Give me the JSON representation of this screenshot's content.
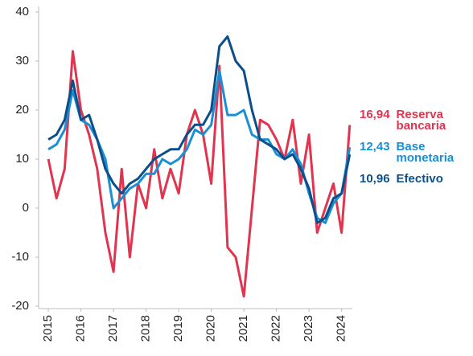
{
  "chart_data": {
    "type": "line",
    "x": [
      2015,
      2015.25,
      2015.5,
      2015.75,
      2016,
      2016.25,
      2016.5,
      2016.75,
      2017,
      2017.25,
      2017.5,
      2017.75,
      2018,
      2018.25,
      2018.5,
      2018.75,
      2019,
      2019.25,
      2019.5,
      2019.75,
      2020,
      2020.25,
      2020.5,
      2020.75,
      2021,
      2021.25,
      2021.5,
      2021.75,
      2022,
      2022.25,
      2022.5,
      2022.75,
      2023,
      2023.25,
      2023.5,
      2023.75,
      2024,
      2024.25
    ],
    "series": [
      {
        "name": "Reserva bancaria",
        "color": "#e0344f",
        "end_label": "16,94",
        "values": [
          10,
          2,
          8,
          32,
          20,
          15,
          8,
          -5,
          -13,
          8,
          -10,
          5,
          0,
          12,
          2,
          8,
          3,
          15,
          20,
          15,
          5,
          29,
          -8,
          -10,
          -18,
          0,
          18,
          17,
          14,
          10,
          18,
          5,
          15,
          -5,
          0,
          5,
          -5,
          16.94
        ]
      },
      {
        "name": "Base monetaria",
        "color": "#1b8fd6",
        "end_label": "12,43",
        "values": [
          12,
          13,
          16,
          24,
          18,
          17,
          14,
          10,
          0,
          2,
          4,
          5,
          7,
          7,
          10,
          9,
          10,
          12,
          16,
          15,
          17,
          28,
          19,
          19,
          20,
          15,
          14,
          14,
          11,
          10,
          12,
          9,
          3,
          -2,
          -3,
          1,
          3,
          12.43
        ]
      },
      {
        "name": "Efectivo",
        "color": "#0b4f8a",
        "end_label": "10,96",
        "values": [
          14,
          15,
          18,
          26,
          18,
          19,
          14,
          8,
          5,
          3,
          5,
          6,
          8,
          10,
          11,
          12,
          12,
          15,
          17,
          17,
          20,
          33,
          35,
          30,
          28,
          20,
          14,
          13,
          12,
          10,
          11,
          8,
          4,
          -3,
          -2,
          2,
          3,
          10.96
        ]
      }
    ],
    "xlim": [
      2014.8,
      2024.3
    ],
    "xticks": [
      2015,
      2016,
      2017,
      2018,
      2019,
      2020,
      2021,
      2022,
      2023,
      2024
    ],
    "ylim": [
      -20,
      40
    ],
    "yticks": [
      -20,
      -10,
      0,
      10,
      20,
      30,
      40
    ]
  }
}
